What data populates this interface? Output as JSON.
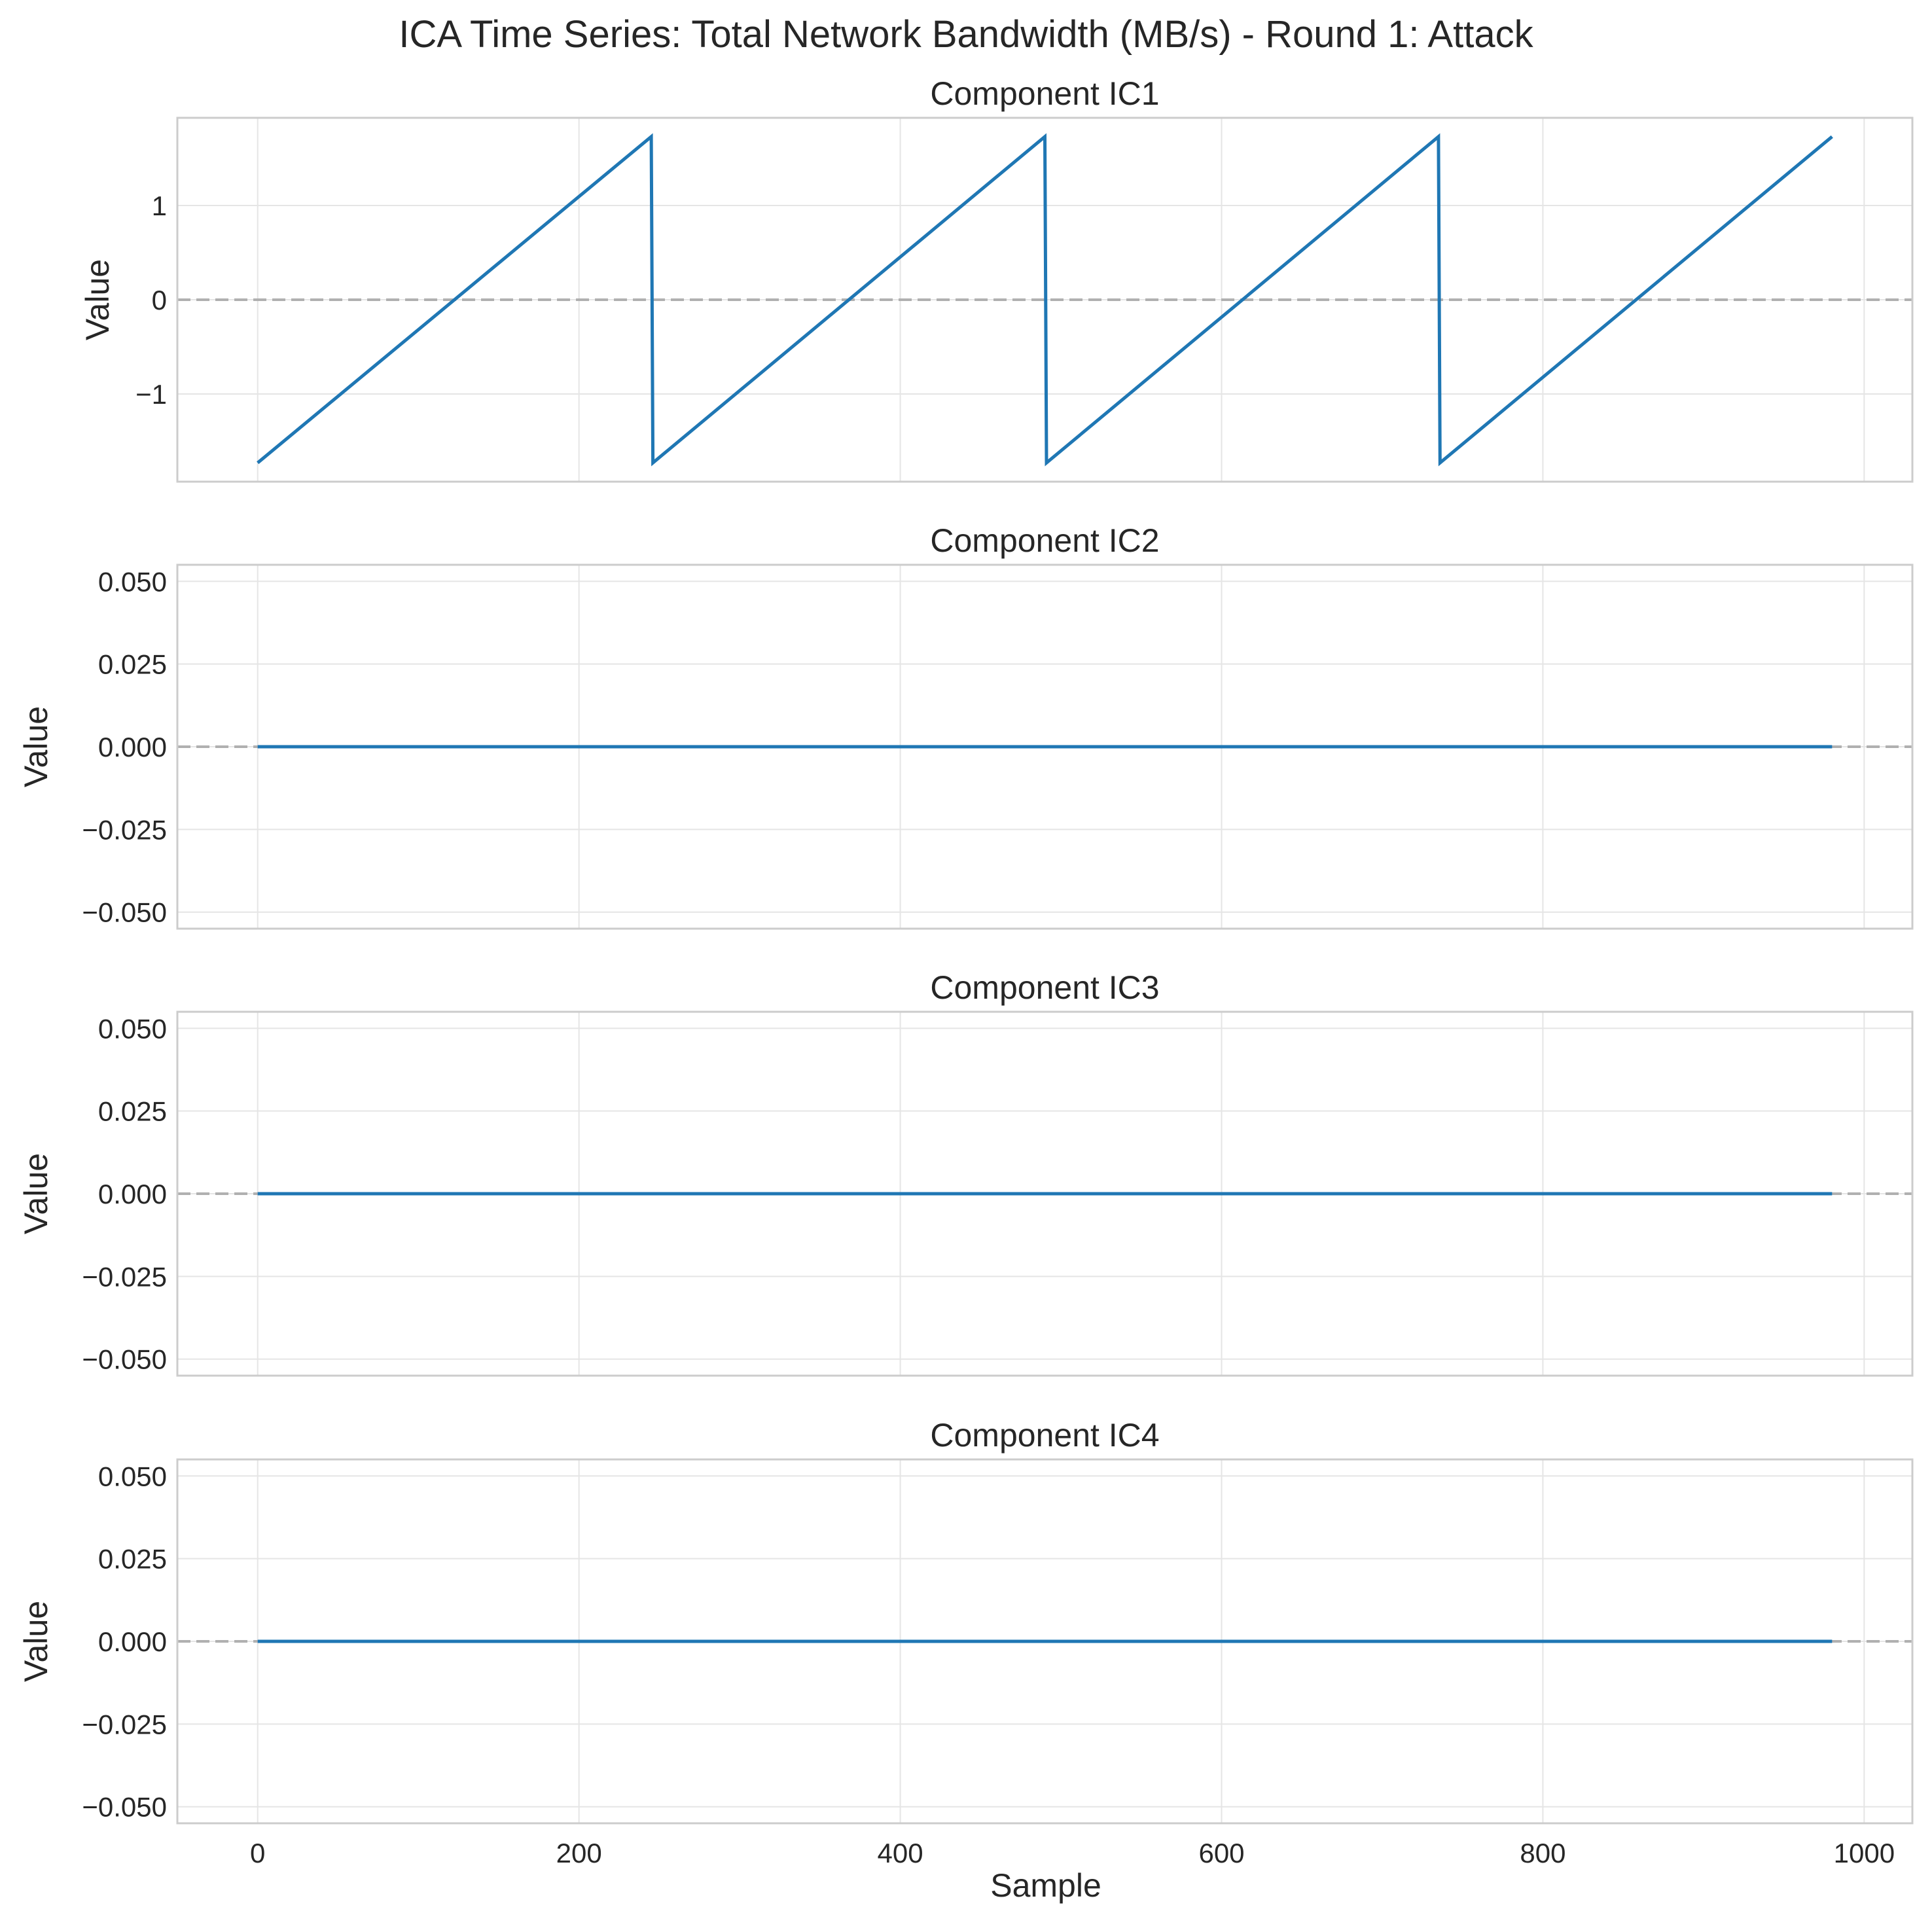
{
  "figure": {
    "suptitle": "ICA Time Series: Total Network Bandwidth (MB/s) - Round 1: Attack",
    "xlabel": "Sample",
    "line_color": "#1f77b4",
    "zero_line_color": "#b0b0b0",
    "grid_color": "#e5e5e5",
    "spine_color": "#cccccc"
  },
  "chart_data": [
    {
      "type": "line",
      "title": "Component IC1",
      "xlabel": "",
      "ylabel": "Value",
      "xlim": [
        -50,
        1030
      ],
      "ylim": [
        -1.93,
        1.93
      ],
      "xticks": [
        0,
        200,
        400,
        600,
        800,
        1000
      ],
      "show_xticklabels": false,
      "yticks": [
        -1,
        0,
        1
      ],
      "ytick_labels": [
        "−1",
        "0",
        "1"
      ],
      "grid": true,
      "zero_line": true,
      "series": [
        {
          "x": [
            0,
            245,
            246,
            490,
            491,
            735,
            736,
            980
          ],
          "y": [
            -1.73,
            1.73,
            -1.73,
            1.73,
            -1.73,
            1.73,
            -1.73,
            1.73
          ]
        }
      ]
    },
    {
      "type": "line",
      "title": "Component IC2",
      "xlabel": "",
      "ylabel": "Value",
      "xlim": [
        -50,
        1030
      ],
      "ylim": [
        -0.055,
        0.055
      ],
      "xticks": [
        0,
        200,
        400,
        600,
        800,
        1000
      ],
      "show_xticklabels": false,
      "yticks": [
        -0.05,
        -0.025,
        0,
        0.025,
        0.05
      ],
      "ytick_labels": [
        "−0.050",
        "−0.025",
        "0.000",
        "0.025",
        "0.050"
      ],
      "grid": true,
      "zero_line": true,
      "series": [
        {
          "x": [
            0,
            980
          ],
          "y": [
            0,
            0
          ]
        }
      ]
    },
    {
      "type": "line",
      "title": "Component IC3",
      "xlabel": "",
      "ylabel": "Value",
      "xlim": [
        -50,
        1030
      ],
      "ylim": [
        -0.055,
        0.055
      ],
      "xticks": [
        0,
        200,
        400,
        600,
        800,
        1000
      ],
      "show_xticklabels": false,
      "yticks": [
        -0.05,
        -0.025,
        0,
        0.025,
        0.05
      ],
      "ytick_labels": [
        "−0.050",
        "−0.025",
        "0.000",
        "0.025",
        "0.050"
      ],
      "grid": true,
      "zero_line": true,
      "series": [
        {
          "x": [
            0,
            980
          ],
          "y": [
            0,
            0
          ]
        }
      ]
    },
    {
      "type": "line",
      "title": "Component IC4",
      "xlabel": "Sample",
      "ylabel": "Value",
      "xlim": [
        -50,
        1030
      ],
      "ylim": [
        -0.055,
        0.055
      ],
      "xticks": [
        0,
        200,
        400,
        600,
        800,
        1000
      ],
      "xtick_labels": [
        "0",
        "200",
        "400",
        "600",
        "800",
        "1000"
      ],
      "show_xticklabels": true,
      "yticks": [
        -0.05,
        -0.025,
        0,
        0.025,
        0.05
      ],
      "ytick_labels": [
        "−0.050",
        "−0.025",
        "0.000",
        "0.025",
        "0.050"
      ],
      "grid": true,
      "zero_line": true,
      "series": [
        {
          "x": [
            0,
            980
          ],
          "y": [
            0,
            0
          ]
        }
      ]
    }
  ]
}
